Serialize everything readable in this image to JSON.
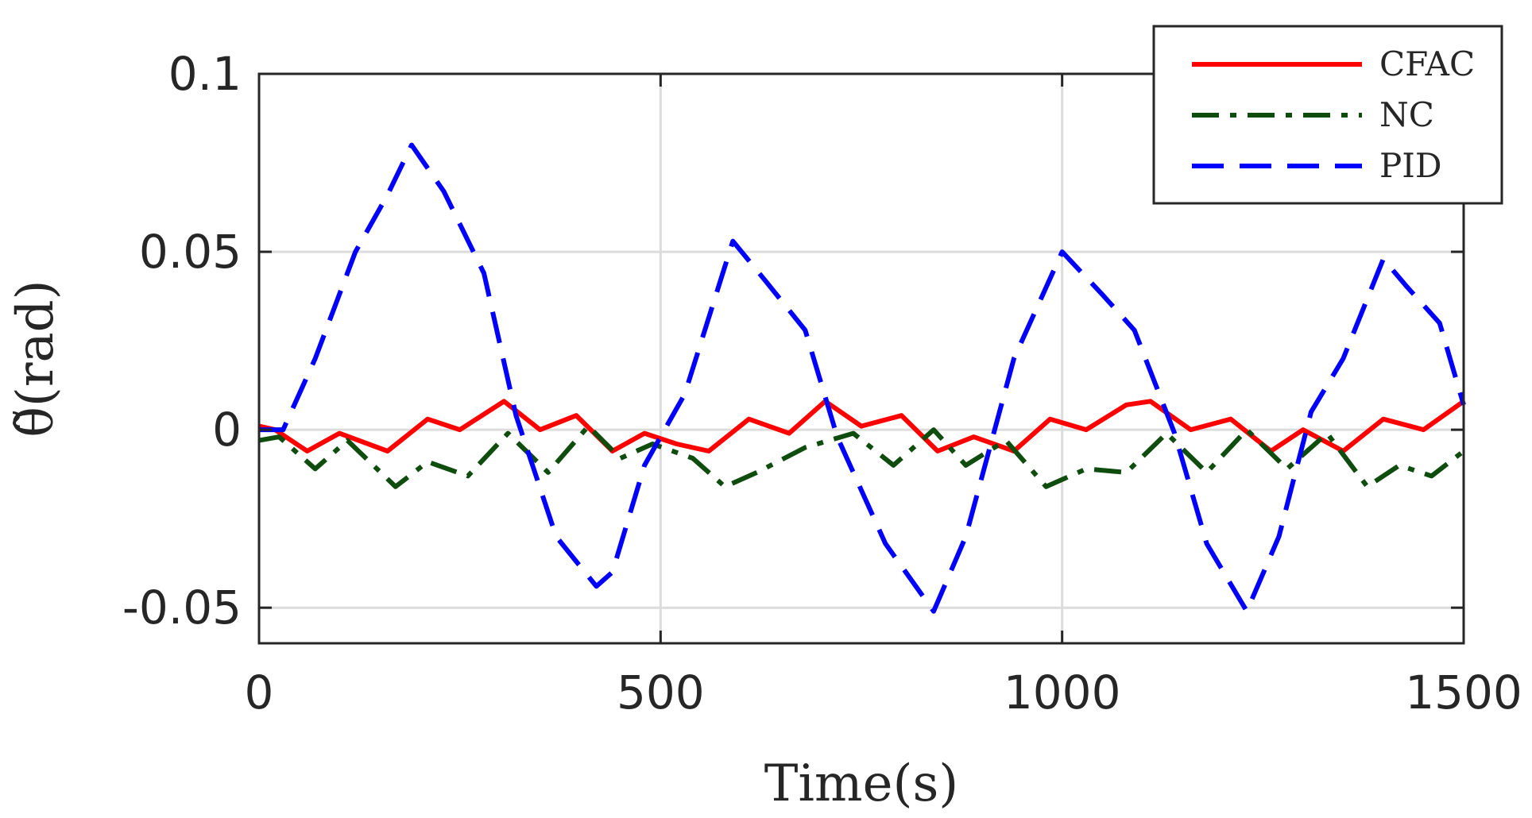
{
  "chart_data": {
    "type": "line",
    "xlabel": "Time(s)",
    "ylabel": "θ̃(rad)",
    "xlim": [
      0,
      1500
    ],
    "ylim": [
      -0.06,
      0.1
    ],
    "xticks": [
      0,
      500,
      1000,
      1500
    ],
    "xtick_labels": [
      "0",
      "500",
      "1000",
      "1500"
    ],
    "yticks": [
      0.1,
      0.05,
      0,
      -0.05
    ],
    "ytick_labels": [
      "0.1",
      "0.05",
      "0",
      "-0.05"
    ],
    "grid": true,
    "legend_position": "top-right",
    "series": [
      {
        "name": "CFAC",
        "color": "#ff0000",
        "dash": "solid",
        "x": [
          0,
          20,
          60,
          100,
          160,
          210,
          250,
          305,
          350,
          395,
          440,
          480,
          520,
          560,
          610,
          660,
          705,
          750,
          800,
          845,
          890,
          940,
          985,
          1030,
          1080,
          1110,
          1160,
          1210,
          1260,
          1300,
          1350,
          1400,
          1450,
          1500
        ],
        "y": [
          0.001,
          0.0,
          -0.006,
          -0.001,
          -0.006,
          0.003,
          0.0,
          0.008,
          0.0,
          0.004,
          -0.006,
          -0.001,
          -0.004,
          -0.006,
          0.003,
          -0.001,
          0.008,
          0.001,
          0.004,
          -0.006,
          -0.002,
          -0.006,
          0.003,
          0.0,
          0.007,
          0.008,
          0.0,
          0.003,
          -0.006,
          0.0,
          -0.006,
          0.003,
          0.0,
          0.008
        ]
      },
      {
        "name": "NC",
        "color": "#0f4d0f",
        "dash": "dashdot",
        "x": [
          0,
          25,
          70,
          110,
          170,
          210,
          260,
          310,
          360,
          410,
          450,
          490,
          540,
          580,
          620,
          680,
          740,
          790,
          840,
          880,
          930,
          980,
          1030,
          1080,
          1130,
          1180,
          1230,
          1280,
          1330,
          1380,
          1420,
          1460,
          1500
        ],
        "y": [
          -0.003,
          -0.002,
          -0.011,
          -0.003,
          -0.016,
          -0.009,
          -0.013,
          -0.001,
          -0.012,
          0.001,
          -0.008,
          -0.004,
          -0.008,
          -0.016,
          -0.012,
          -0.005,
          -0.001,
          -0.01,
          0.0,
          -0.01,
          -0.003,
          -0.016,
          -0.011,
          -0.012,
          -0.001,
          -0.012,
          0.0,
          -0.011,
          -0.001,
          -0.016,
          -0.01,
          -0.013,
          -0.006
        ]
      },
      {
        "name": "PID",
        "color": "#0000ff",
        "dash": "dashed",
        "x": [
          0,
          30,
          70,
          120,
          160,
          190,
          230,
          280,
          320,
          370,
          420,
          440,
          480,
          530,
          590,
          630,
          680,
          720,
          780,
          840,
          880,
          940,
          1000,
          1050,
          1090,
          1140,
          1180,
          1230,
          1270,
          1310,
          1350,
          1400,
          1430,
          1470,
          1500
        ],
        "y": [
          0.0,
          0.0,
          0.02,
          0.05,
          0.066,
          0.08,
          0.067,
          0.044,
          0.004,
          -0.03,
          -0.044,
          -0.04,
          -0.01,
          0.01,
          0.053,
          0.042,
          0.028,
          -0.002,
          -0.032,
          -0.051,
          -0.03,
          0.02,
          0.05,
          0.038,
          0.028,
          -0.001,
          -0.032,
          -0.051,
          -0.03,
          0.005,
          0.02,
          0.048,
          0.04,
          0.03,
          0.007
        ]
      }
    ]
  }
}
